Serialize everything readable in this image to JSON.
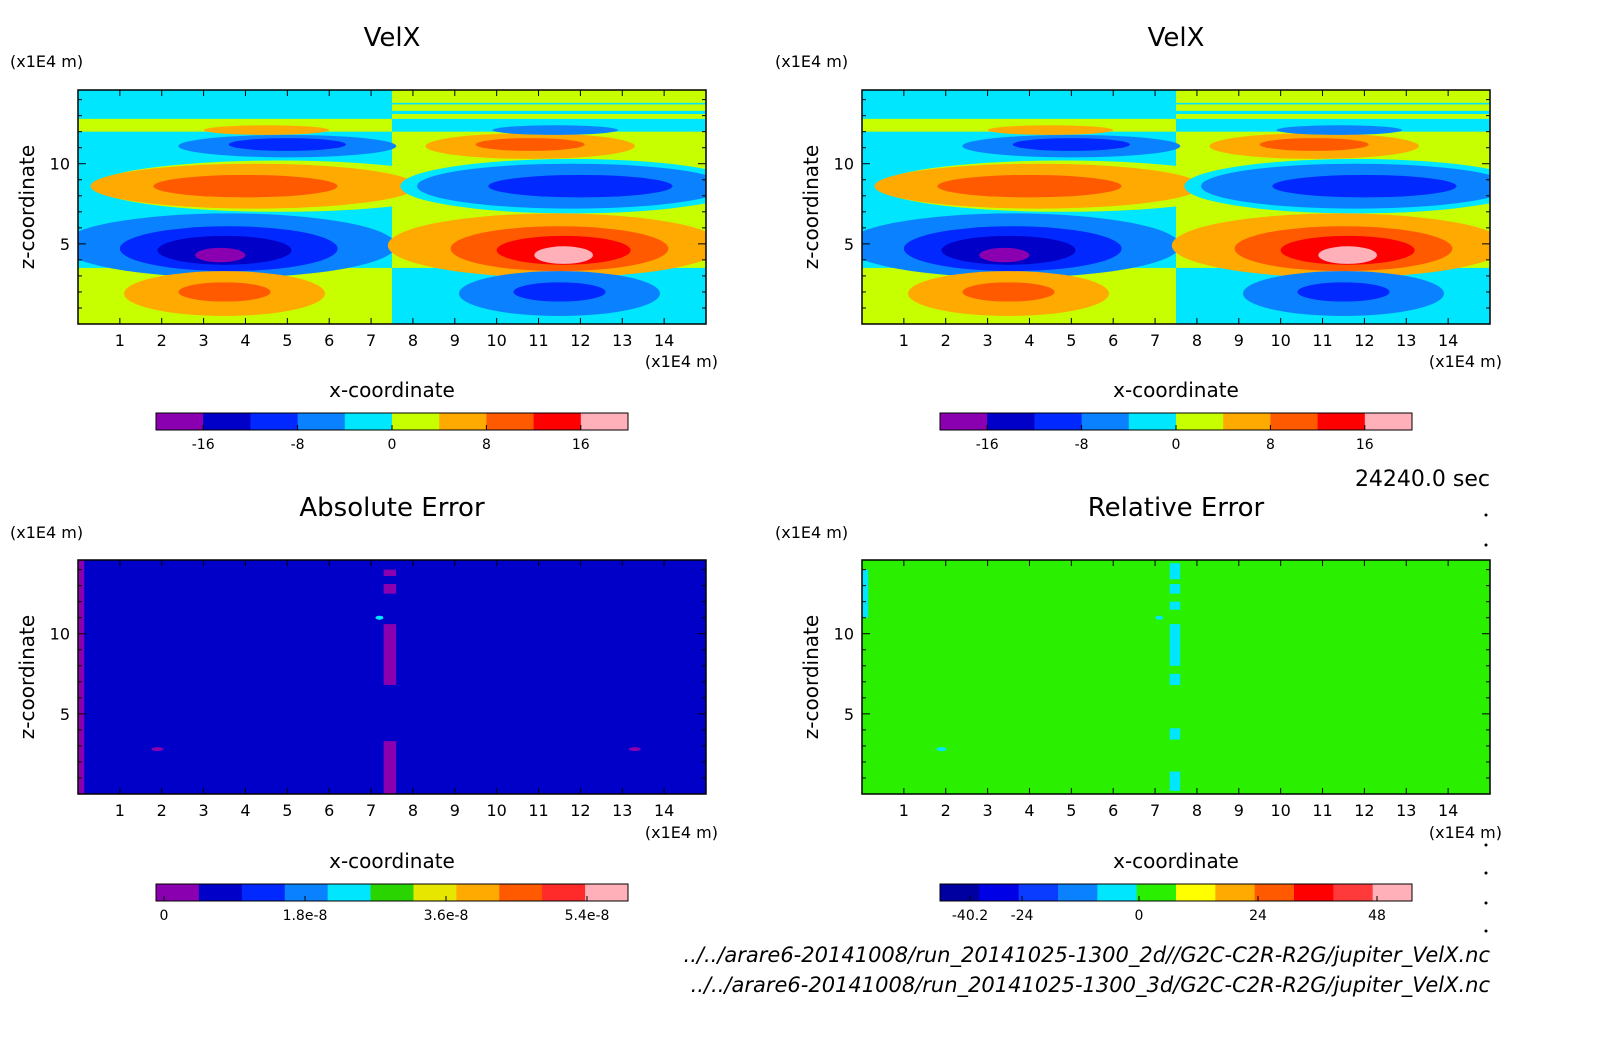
{
  "footer": {
    "time": "24240.0 sec",
    "file_2d": "../../arare6-20141008/run_20141025-1300_2d//G2C-C2R-R2G/jupiter_VelX.nc",
    "file_3d": "../../arare6-20141008/run_20141025-1300_3d/G2C-C2R-R2G/jupiter_VelX.nc"
  },
  "chart_data": [
    {
      "type": "heatmap",
      "title": "VelX",
      "x_unit": "(x1E4 m)",
      "y_unit": "(x1E4 m)",
      "xlabel": "x-coordinate",
      "ylabel": "z-coordinate",
      "xlim": [
        0,
        15
      ],
      "ylim": [
        0,
        15
      ],
      "x_ticks": [
        "1",
        "2",
        "3",
        "4",
        "5",
        "6",
        "7",
        "8",
        "9",
        "10",
        "11",
        "12",
        "13",
        "14"
      ],
      "y_ticks": [
        "5",
        "10"
      ],
      "colorbar": {
        "colors": [
          "#8a00b0",
          "#0000c8",
          "#0028ff",
          "#0a82ff",
          "#00e6ff",
          "#c8ff00",
          "#ffaa00",
          "#ff5a00",
          "#ff0000",
          "#ffb0b8"
        ],
        "ticks": [
          "-16",
          "-8",
          "0",
          "8",
          "16"
        ],
        "range": [
          -20,
          20
        ]
      },
      "field_description": "antisymmetric vortex pattern about x=7.5: negative jet core near (3.5,4.5), positive core near (11.5,4.5)"
    },
    {
      "type": "heatmap",
      "title": "VelX",
      "x_unit": "(x1E4 m)",
      "y_unit": "(x1E4 m)",
      "xlabel": "x-coordinate",
      "ylabel": "z-coordinate",
      "xlim": [
        0,
        15
      ],
      "ylim": [
        0,
        15
      ],
      "x_ticks": [
        "1",
        "2",
        "3",
        "4",
        "5",
        "6",
        "7",
        "8",
        "9",
        "10",
        "11",
        "12",
        "13",
        "14"
      ],
      "y_ticks": [
        "5",
        "10"
      ],
      "colorbar": {
        "colors": [
          "#8a00b0",
          "#0000c8",
          "#0028ff",
          "#0a82ff",
          "#00e6ff",
          "#c8ff00",
          "#ffaa00",
          "#ff5a00",
          "#ff0000",
          "#ffb0b8"
        ],
        "ticks": [
          "-16",
          "-8",
          "0",
          "8",
          "16"
        ],
        "range": [
          -20,
          20
        ]
      }
    },
    {
      "type": "heatmap",
      "title": "Absolute Error",
      "x_unit": "(x1E4 m)",
      "y_unit": "(x1E4 m)",
      "xlabel": "x-coordinate",
      "ylabel": "z-coordinate",
      "xlim": [
        0,
        15
      ],
      "ylim": [
        0,
        15
      ],
      "x_ticks": [
        "1",
        "2",
        "3",
        "4",
        "5",
        "6",
        "7",
        "8",
        "9",
        "10",
        "11",
        "12",
        "13",
        "14"
      ],
      "y_ticks": [
        "5",
        "10"
      ],
      "background_color": "#0000c8",
      "colorbar": {
        "colors": [
          "#8a00b0",
          "#0000c8",
          "#0028ff",
          "#0a82ff",
          "#00e6ff",
          "#2ad400",
          "#e6e600",
          "#ffaa00",
          "#ff5a00",
          "#ff2a2a",
          "#ffb0b8"
        ],
        "ticks": [
          "0",
          "1.8e-8",
          "3.6e-8",
          "5.4e-8"
        ]
      }
    },
    {
      "type": "heatmap",
      "title": "Relative Error",
      "x_unit": "(x1E4 m)",
      "y_unit": "(x1E4 m)",
      "xlabel": "x-coordinate",
      "ylabel": "z-coordinate",
      "xlim": [
        0,
        15
      ],
      "ylim": [
        0,
        15
      ],
      "x_ticks": [
        "1",
        "2",
        "3",
        "4",
        "5",
        "6",
        "7",
        "8",
        "9",
        "10",
        "11",
        "12",
        "13",
        "14"
      ],
      "y_ticks": [
        "5",
        "10"
      ],
      "background_color": "#2af000",
      "colorbar": {
        "colors": [
          "#0000a0",
          "#0000e6",
          "#0a3cff",
          "#0a82ff",
          "#00e6ff",
          "#2af000",
          "#ffff00",
          "#ffaa00",
          "#ff5a00",
          "#ff0000",
          "#ff3a3a",
          "#ffb0b8"
        ],
        "ticks": [
          "-40.2",
          "-24",
          "0",
          "24",
          "48"
        ]
      }
    }
  ]
}
